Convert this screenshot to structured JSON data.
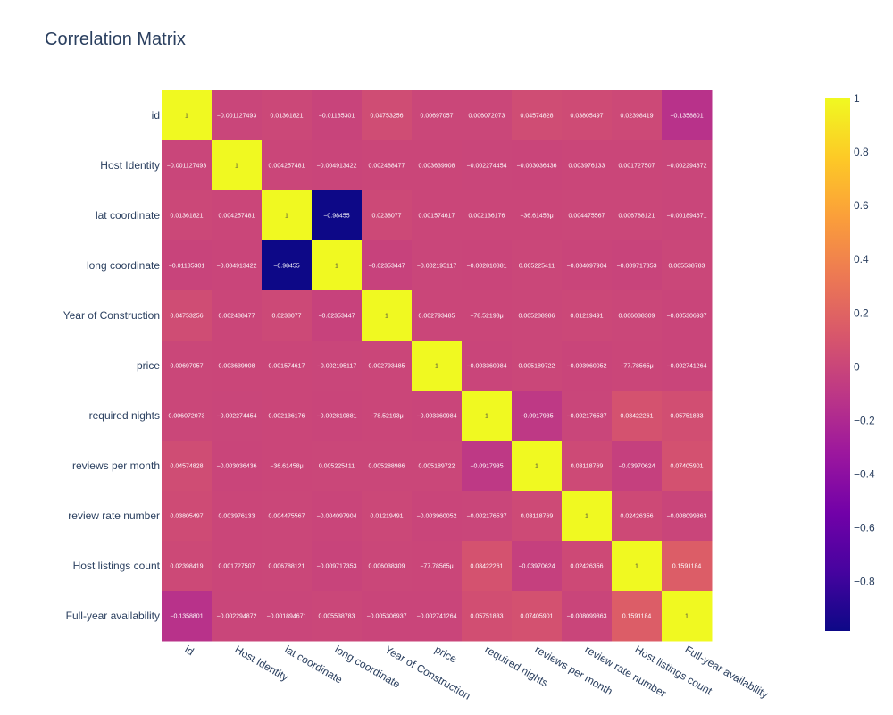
{
  "chart_data": {
    "type": "heatmap",
    "title": "Correlation Matrix",
    "variables": [
      "id",
      "Host Identity",
      "lat coordinate",
      "long coordinate",
      "Year of Construction",
      "price",
      "required nights",
      "reviews per month",
      "review rate number",
      "Host listings count",
      "Full-year availability"
    ],
    "values": [
      [
        1,
        -0.001127493,
        0.01361821,
        -0.01185301,
        0.04753256,
        0.00697057,
        0.006072073,
        0.04574828,
        0.03805497,
        0.02398419,
        -0.1358801
      ],
      [
        -0.001127493,
        1,
        0.004257481,
        -0.004913422,
        0.002488477,
        0.003639908,
        -0.002274454,
        -0.003036436,
        0.003976133,
        0.001727507,
        -0.002294872
      ],
      [
        0.01361821,
        0.004257481,
        1,
        -0.98455,
        0.0238077,
        0.001574617,
        0.002136176,
        -3.66146e-05,
        0.004475567,
        0.006788121,
        -0.001894671
      ],
      [
        -0.01185301,
        -0.004913422,
        -0.98455,
        1,
        -0.02353447,
        -0.002195117,
        -0.002810881,
        0.005225411,
        -0.004097904,
        -0.009717353,
        0.005538783
      ],
      [
        0.04753256,
        0.002488477,
        0.0238077,
        -0.02353447,
        1,
        0.002793485,
        -7.85219e-05,
        0.005288986,
        0.01219491,
        0.006038309,
        -0.005306937
      ],
      [
        0.00697057,
        0.003639908,
        0.001574617,
        -0.002195117,
        0.002793485,
        1,
        -0.003360984,
        0.005189722,
        -0.003960052,
        -7.77857e-05,
        -0.002741264
      ],
      [
        0.006072073,
        -0.002274454,
        0.002136176,
        -0.002810881,
        -7.85219e-05,
        -0.003360984,
        1,
        -0.0917935,
        -0.002176537,
        0.08422261,
        0.05751833
      ],
      [
        0.04574828,
        -0.003036436,
        -3.66146e-05,
        0.005225411,
        0.005288986,
        0.005189722,
        -0.0917935,
        1,
        0.03118769,
        -0.03970624,
        0.07405901
      ],
      [
        0.03805497,
        0.003976133,
        0.004475567,
        -0.004097904,
        0.01219491,
        -0.003960052,
        -0.002176537,
        0.03118769,
        1,
        0.02426356,
        -0.008099863
      ],
      [
        0.02398419,
        0.001727507,
        0.006788121,
        -0.009717353,
        0.006038309,
        -7.77857e-05,
        0.08422261,
        -0.03970624,
        0.02426356,
        1,
        0.1591184
      ],
      [
        -0.1358801,
        -0.002294872,
        -0.001894671,
        0.005538783,
        -0.005306937,
        -0.002741264,
        0.05751833,
        0.07405901,
        -0.008099863,
        0.1591184,
        1
      ]
    ],
    "text": [
      [
        "1",
        "−0.001127493",
        "0.01361821",
        "−0.01185301",
        "0.04753256",
        "0.00697057",
        "0.006072073",
        "0.04574828",
        "0.03805497",
        "0.02398419",
        "−0.1358801"
      ],
      [
        "−0.001127493",
        "1",
        "0.004257481",
        "−0.004913422",
        "0.002488477",
        "0.003639908",
        "−0.002274454",
        "−0.003036436",
        "0.003976133",
        "0.001727507",
        "−0.002294872"
      ],
      [
        "0.01361821",
        "0.004257481",
        "1",
        "−0.98455",
        "0.0238077",
        "0.001574617",
        "0.002136176",
        "−36.61458μ",
        "0.004475567",
        "0.006788121",
        "−0.001894671"
      ],
      [
        "−0.01185301",
        "−0.004913422",
        "−0.98455",
        "1",
        "−0.02353447",
        "−0.002195117",
        "−0.002810881",
        "0.005225411",
        "−0.004097904",
        "−0.009717353",
        "0.005538783"
      ],
      [
        "0.04753256",
        "0.002488477",
        "0.0238077",
        "−0.02353447",
        "1",
        "0.002793485",
        "−78.52193μ",
        "0.005288986",
        "0.01219491",
        "0.006038309",
        "−0.005306937"
      ],
      [
        "0.00697057",
        "0.003639908",
        "0.001574617",
        "−0.002195117",
        "0.002793485",
        "1",
        "−0.003360984",
        "0.005189722",
        "−0.003960052",
        "−77.78565μ",
        "−0.002741264"
      ],
      [
        "0.006072073",
        "−0.002274454",
        "0.002136176",
        "−0.002810881",
        "−78.52193μ",
        "−0.003360984",
        "1",
        "−0.0917935",
        "−0.002176537",
        "0.08422261",
        "0.05751833"
      ],
      [
        "0.04574828",
        "−0.003036436",
        "−36.61458μ",
        "0.005225411",
        "0.005288986",
        "0.005189722",
        "−0.0917935",
        "1",
        "0.03118769",
        "−0.03970624",
        "0.07405901"
      ],
      [
        "0.03805497",
        "0.003976133",
        "0.004475567",
        "−0.004097904",
        "0.01219491",
        "−0.003960052",
        "−0.002176537",
        "0.03118769",
        "1",
        "0.02426356",
        "−0.008099863"
      ],
      [
        "0.02398419",
        "0.001727507",
        "0.006788121",
        "−0.009717353",
        "0.006038309",
        "−77.78565μ",
        "0.08422261",
        "−0.03970624",
        "0.02426356",
        "1",
        "0.1591184"
      ],
      [
        "−0.1358801",
        "−0.002294872",
        "−0.001894671",
        "0.005538783",
        "−0.005306937",
        "−0.002741264",
        "0.05751833",
        "0.07405901",
        "−0.008099863",
        "0.1591184",
        "1"
      ]
    ],
    "zrange": [
      -0.98455,
      1
    ],
    "colorbar": {
      "tick_values": [
        1,
        0.8,
        0.6,
        0.4,
        0.2,
        0,
        -0.2,
        -0.4,
        -0.6,
        -0.8
      ],
      "tick_labels": [
        "1",
        "0.8",
        "0.6",
        "0.4",
        "0.2",
        "0",
        "−0.2",
        "−0.4",
        "−0.6",
        "−0.8"
      ],
      "colorscale": [
        "#0d0887",
        "#46039f",
        "#7201a8",
        "#9c179e",
        "#bd3786",
        "#d8576b",
        "#ed7953",
        "#fb9f3a",
        "#fdca26",
        "#f0f921"
      ]
    },
    "legend": "colorbar-right",
    "grid": false
  }
}
